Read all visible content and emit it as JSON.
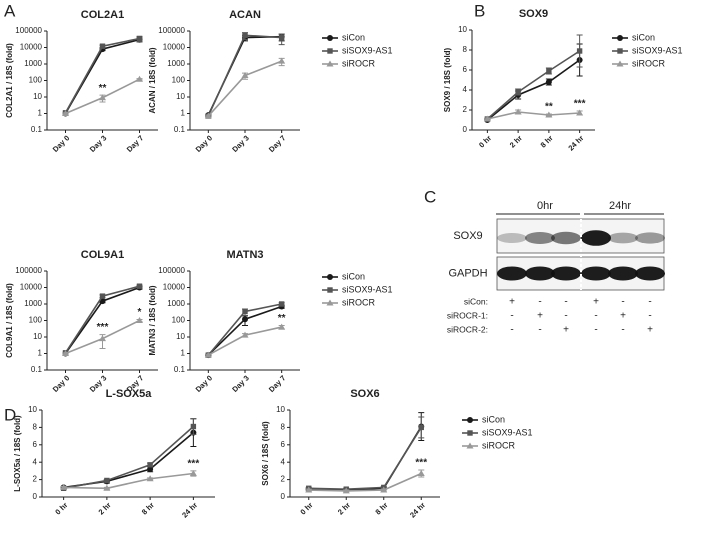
{
  "panels": [
    "A",
    "B",
    "C",
    "D"
  ],
  "chart_data": [
    {
      "type": "line",
      "title": "COL2A1",
      "ylabel": "COL2A1 / 18S (fold)",
      "yscale": "log",
      "legend": false,
      "categories": [
        "Day 0",
        "Day 3",
        "Day 7"
      ],
      "ylim": [
        0.1,
        100000
      ],
      "yticks": [
        0.1,
        1,
        10,
        100,
        1000,
        10000,
        100000
      ],
      "series": [
        {
          "color": "#1a1a1a",
          "marker": "circle",
          "values": [
            1,
            8000,
            30000
          ],
          "errors": [
            0.1,
            1500,
            8000
          ]
        },
        {
          "color": "#555555",
          "marker": "square",
          "values": [
            1.1,
            12000,
            35000
          ],
          "errors": [
            0.1,
            2000,
            12000
          ]
        },
        {
          "color": "#999999",
          "marker": "triangle",
          "values": [
            1,
            9,
            120
          ],
          "errors": [
            0.1,
            4,
            10
          ]
        }
      ],
      "annotations": [
        {
          "text": "**",
          "x": "Day 3"
        }
      ]
    },
    {
      "type": "line",
      "title": "ACAN",
      "ylabel": "ACAN / 18S (fold)",
      "yscale": "log",
      "legend": true,
      "categories": [
        "Day 0",
        "Day 3",
        "Day 7"
      ],
      "ylim": [
        0.1,
        100000
      ],
      "yticks": [
        0.1,
        1,
        10,
        100,
        1000,
        10000,
        100000
      ],
      "series": [
        {
          "name": "siCon",
          "color": "#1a1a1a",
          "marker": "circle",
          "values": [
            0.8,
            40000,
            45000
          ],
          "errors": [
            0.1,
            15000,
            20000
          ]
        },
        {
          "name": "siSOX9-AS1",
          "color": "#555555",
          "marker": "square",
          "values": [
            0.7,
            55000,
            40000
          ],
          "errors": [
            0.1,
            25000,
            25000
          ]
        },
        {
          "name": "siROCR",
          "color": "#999999",
          "marker": "triangle",
          "values": [
            0.7,
            200,
            1500
          ],
          "errors": [
            0.1,
            80,
            700
          ]
        }
      ],
      "annotations": []
    },
    {
      "type": "line",
      "title": "COL9A1",
      "ylabel": "COL9A1 / 18S (fold)",
      "yscale": "log",
      "legend": false,
      "categories": [
        "Day 0",
        "Day 3",
        "Day 7"
      ],
      "ylim": [
        0.1,
        100000
      ],
      "yticks": [
        0.1,
        1,
        10,
        100,
        1000,
        10000,
        100000
      ],
      "series": [
        {
          "color": "#1a1a1a",
          "marker": "circle",
          "values": [
            1,
            1500,
            10000
          ],
          "errors": [
            0.1,
            300,
            2000
          ]
        },
        {
          "color": "#555555",
          "marker": "square",
          "values": [
            1.1,
            3000,
            12000
          ],
          "errors": [
            0.1,
            600,
            2000
          ]
        },
        {
          "color": "#999999",
          "marker": "triangle",
          "values": [
            1,
            8,
            100
          ],
          "errors": [
            0.1,
            6,
            15
          ]
        }
      ],
      "annotations": [
        {
          "text": "***",
          "x": "Day 3"
        },
        {
          "text": "*",
          "x": "Day 7"
        }
      ]
    },
    {
      "type": "line",
      "title": "MATN3",
      "ylabel": "MATN3 / 18S (fold)",
      "yscale": "log",
      "legend": true,
      "categories": [
        "Day 0",
        "Day 3",
        "Day 7"
      ],
      "ylim": [
        0.1,
        100000
      ],
      "yticks": [
        0.1,
        1,
        10,
        100,
        1000,
        10000,
        100000
      ],
      "series": [
        {
          "name": "siCon",
          "color": "#1a1a1a",
          "marker": "circle",
          "values": [
            0.8,
            120,
            700
          ],
          "errors": [
            0.1,
            70,
            150
          ]
        },
        {
          "name": "siSOX9-AS1",
          "color": "#555555",
          "marker": "square",
          "values": [
            0.8,
            350,
            1000
          ],
          "errors": [
            0.1,
            150,
            200
          ]
        },
        {
          "name": "siROCR",
          "color": "#999999",
          "marker": "triangle",
          "values": [
            0.8,
            13,
            40
          ],
          "errors": [
            0.1,
            3,
            10
          ]
        }
      ],
      "annotations": [
        {
          "text": "**",
          "x": "Day 7"
        }
      ]
    },
    {
      "type": "line",
      "title": "SOX9",
      "ylabel": "SOX9 / 18S (fold)",
      "yscale": "linear",
      "legend": true,
      "categories": [
        "0 hr",
        "2 hr",
        "8 hr",
        "24 hr"
      ],
      "ylim": [
        0,
        10
      ],
      "yticks": [
        0,
        2,
        4,
        6,
        8,
        10
      ],
      "series": [
        {
          "name": "siCon",
          "color": "#1a1a1a",
          "marker": "circle",
          "values": [
            1,
            3.5,
            4.8,
            7.0
          ],
          "errors": [
            0.1,
            0.4,
            0.3,
            1.6
          ]
        },
        {
          "name": "siSOX9-AS1",
          "color": "#555555",
          "marker": "square",
          "values": [
            1.1,
            3.8,
            5.9,
            7.9
          ],
          "errors": [
            0.1,
            0.3,
            0.3,
            1.6
          ]
        },
        {
          "name": "siROCR",
          "color": "#999999",
          "marker": "triangle",
          "values": [
            1.1,
            1.8,
            1.5,
            1.7
          ],
          "errors": [
            0.1,
            0.2,
            0.1,
            0.2
          ]
        }
      ],
      "annotations": [
        {
          "text": "**",
          "x": "8 hr"
        },
        {
          "text": "***",
          "x": "24 hr"
        }
      ]
    },
    {
      "type": "line",
      "title": "L-SOX5a",
      "ylabel": "L-SOX5a / 18S (fold)",
      "yscale": "linear",
      "legend": false,
      "categories": [
        "0 hr",
        "2 hr",
        "8 hr",
        "24 hr"
      ],
      "ylim": [
        0,
        10
      ],
      "yticks": [
        0,
        2,
        4,
        6,
        8,
        10
      ],
      "series": [
        {
          "color": "#1a1a1a",
          "marker": "circle",
          "values": [
            1.1,
            1.8,
            3.2,
            7.4
          ],
          "errors": [
            0.1,
            0.2,
            0.3,
            1.6
          ]
        },
        {
          "color": "#555555",
          "marker": "square",
          "values": [
            1.0,
            1.9,
            3.7,
            8.1
          ],
          "errors": [
            0.1,
            0.1,
            0.2,
            0.9
          ]
        },
        {
          "color": "#999999",
          "marker": "triangle",
          "values": [
            1.1,
            1.0,
            2.1,
            2.7
          ],
          "errors": [
            0.1,
            0.1,
            0.1,
            0.3
          ]
        }
      ],
      "annotations": [
        {
          "text": "***",
          "x": "24 hr"
        }
      ]
    },
    {
      "type": "line",
      "title": "SOX6",
      "ylabel": "SOX6 / 18S (fold)",
      "yscale": "linear",
      "legend": true,
      "categories": [
        "0 hr",
        "2 hr",
        "8 hr",
        "24 hr"
      ],
      "ylim": [
        0,
        10
      ],
      "yticks": [
        0,
        2,
        4,
        6,
        8,
        10
      ],
      "series": [
        {
          "name": "siCon",
          "color": "#1a1a1a",
          "marker": "circle",
          "values": [
            0.9,
            0.8,
            1.0,
            8.1
          ],
          "errors": [
            0.1,
            0.1,
            0.1,
            1.6
          ]
        },
        {
          "name": "siSOX9-AS1",
          "color": "#555555",
          "marker": "square",
          "values": [
            1.0,
            0.9,
            1.1,
            8.0
          ],
          "errors": [
            0.1,
            0.1,
            0.1,
            1.2
          ]
        },
        {
          "name": "siROCR",
          "color": "#999999",
          "marker": "triangle",
          "values": [
            0.8,
            0.7,
            0.8,
            2.7
          ],
          "errors": [
            0.1,
            0.1,
            0.1,
            0.4
          ]
        }
      ],
      "annotations": [
        {
          "text": "***",
          "x": "24 hr"
        }
      ]
    }
  ],
  "blot": {
    "times": [
      "0hr",
      "24hr"
    ],
    "rows": [
      "SOX9",
      "GAPDH"
    ],
    "conditions": [
      {
        "name": "siCon:",
        "marks": [
          "+",
          "-",
          "-",
          "+",
          "-",
          "-"
        ]
      },
      {
        "name": "siROCR-1:",
        "marks": [
          "-",
          "+",
          "-",
          "-",
          "+",
          "-"
        ]
      },
      {
        "name": "siROCR-2:",
        "marks": [
          "-",
          "-",
          "+",
          "-",
          "-",
          "+"
        ]
      }
    ]
  }
}
